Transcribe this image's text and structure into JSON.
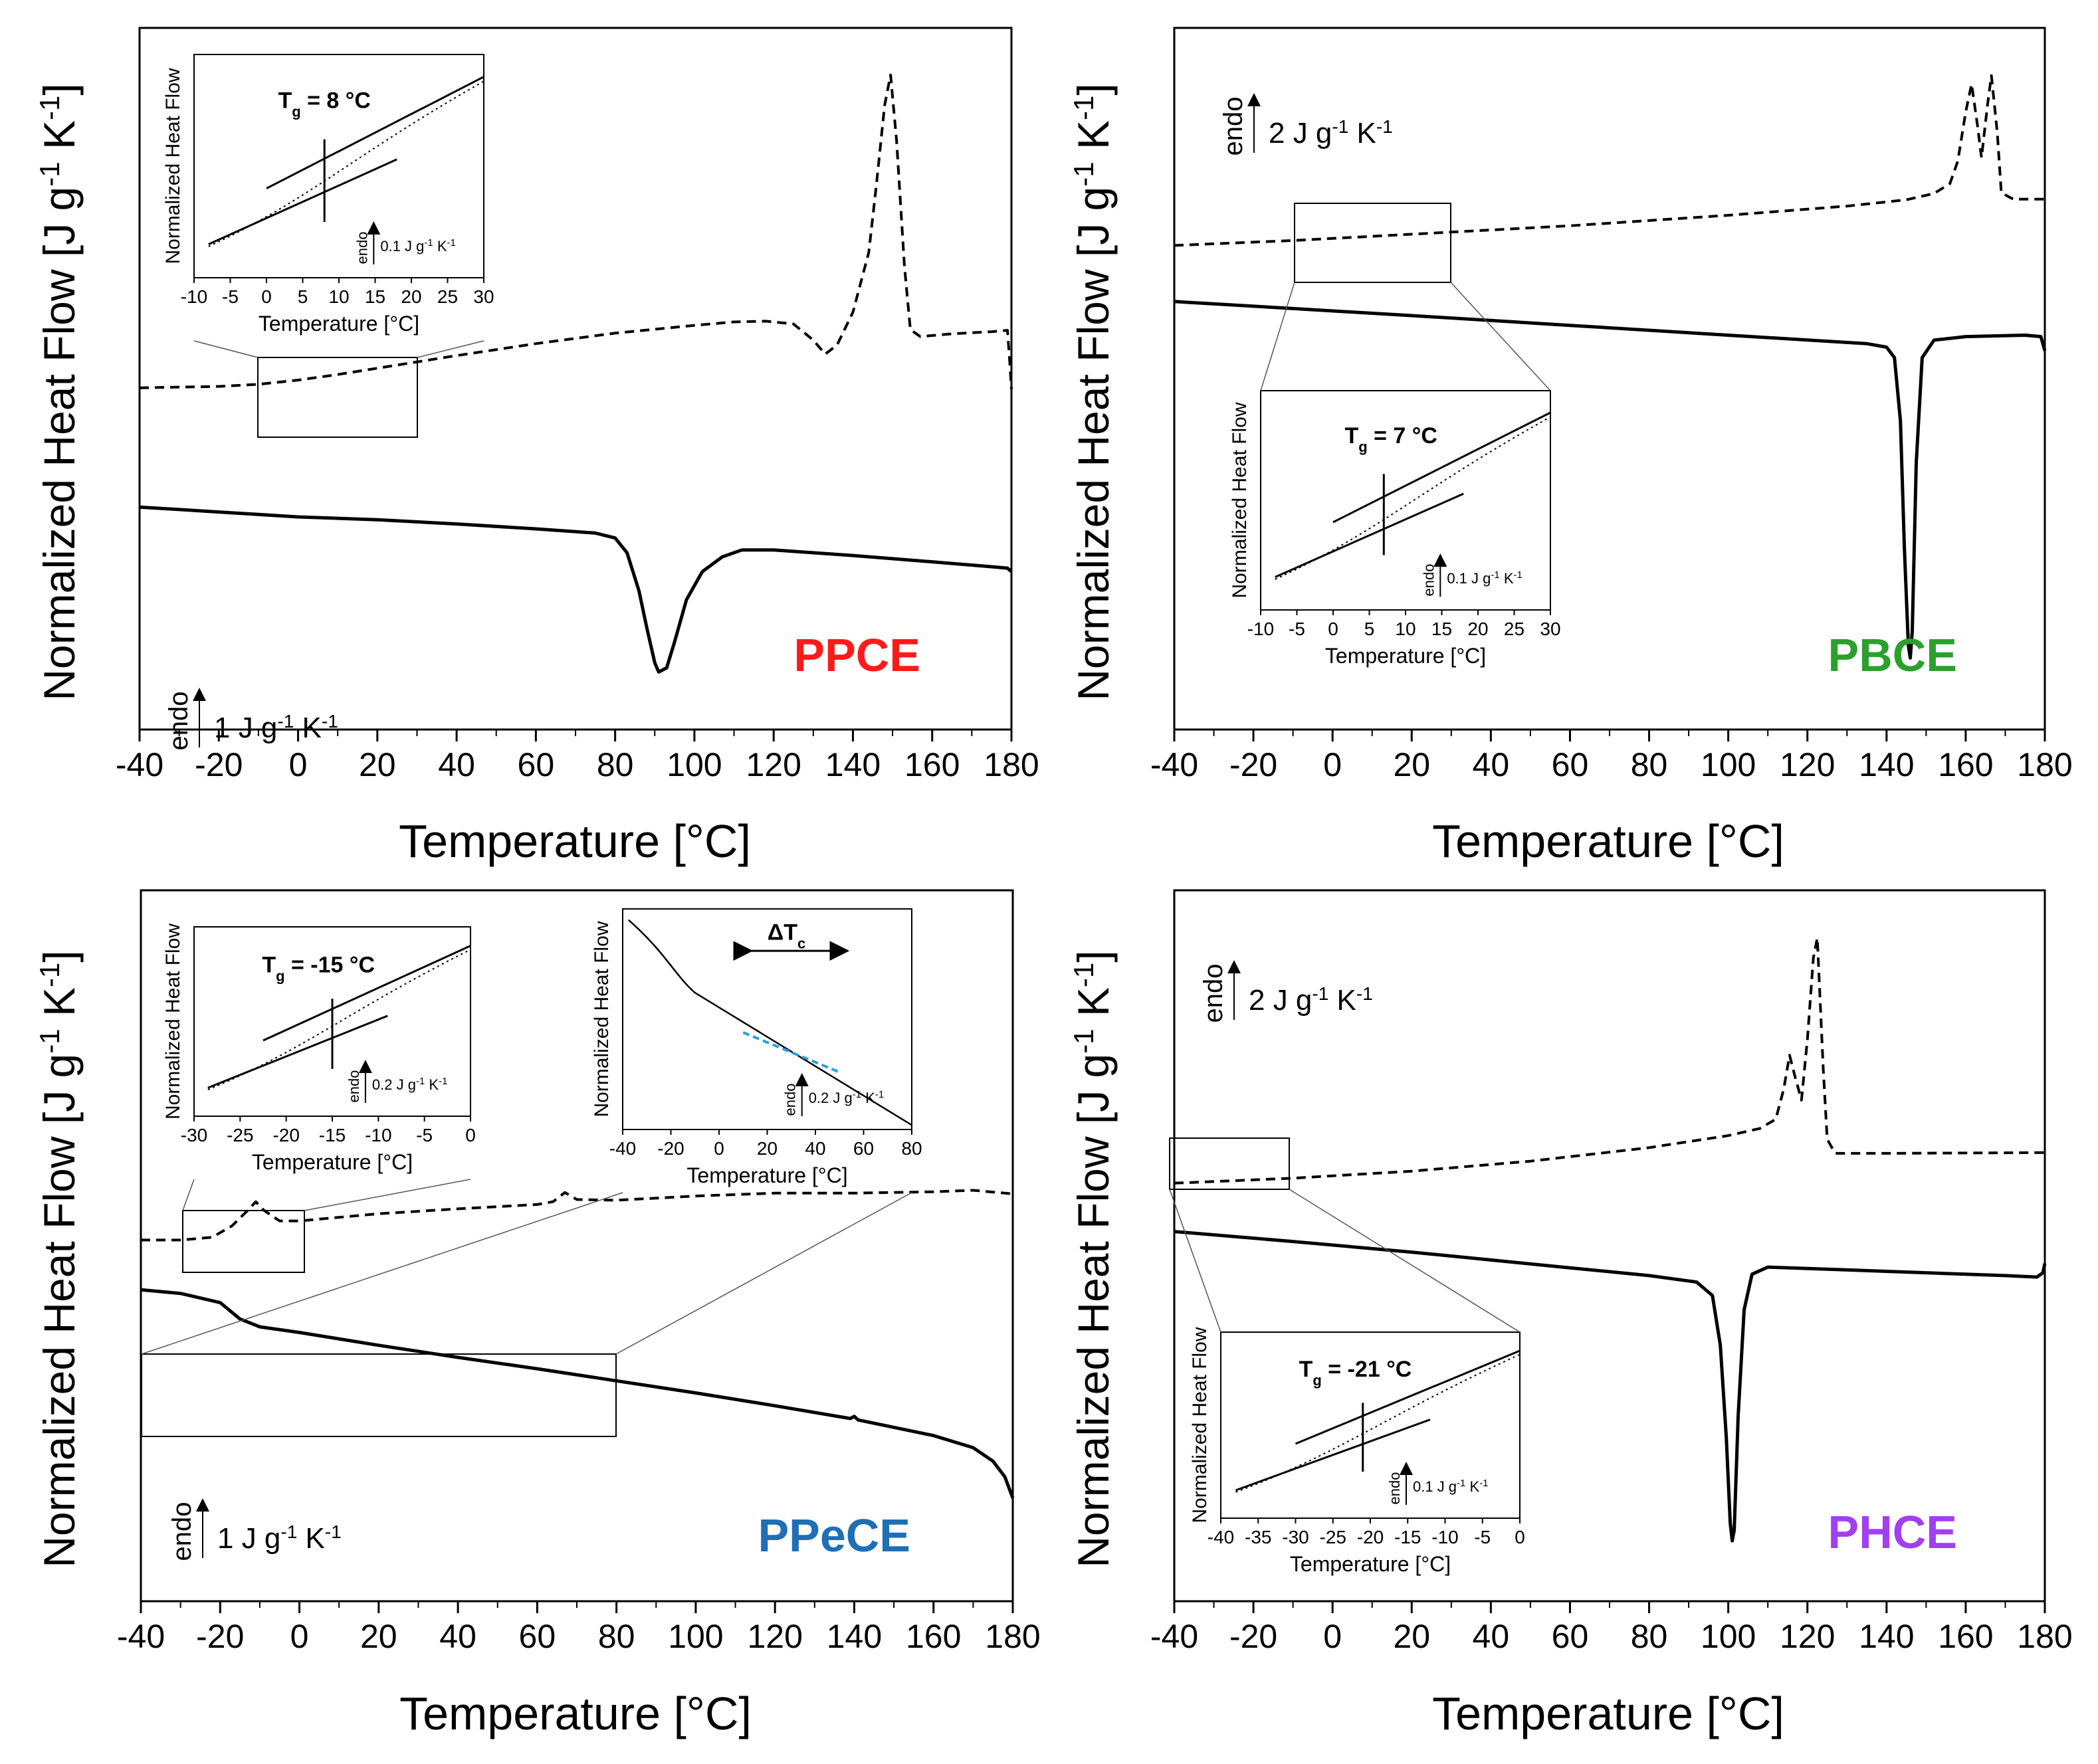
{
  "figure": {
    "common": {
      "xlabel": "Temperature [°C]",
      "ylabel_main": "Normalized Heat Flow [J g",
      "ylabel_sup": "-1",
      "ylabel_k": " K",
      "ylabel_end": "]",
      "inset_ylabel": "Normalized Heat Flow",
      "inset_xlabel": "Temperature [°C]",
      "endo": "endo"
    }
  },
  "chart_data": [
    {
      "id": "ppce",
      "type": "line",
      "title": "PPCE",
      "title_color": "#ff1a1a",
      "xlabel": "Temperature [°C]",
      "ylabel": "Normalized Heat Flow [J g-1 K-1]",
      "xlim": [
        -40,
        180
      ],
      "xticks": [
        -40,
        -20,
        0,
        20,
        40,
        60,
        80,
        100,
        120,
        140,
        160,
        180
      ],
      "ylim": [
        0,
        10
      ],
      "scale_bar": {
        "value": 1,
        "label": "1 J g-1 K-1",
        "main": "1 J g",
        "unit_tail": " K"
      },
      "series": [
        {
          "name": "heating",
          "style": "dashed",
          "points": [
            [
              -40,
              4.87
            ],
            [
              -20,
              4.89
            ],
            [
              -10,
              4.92
            ],
            [
              0,
              4.98
            ],
            [
              10,
              5.06
            ],
            [
              20,
              5.15
            ],
            [
              30,
              5.24
            ],
            [
              40,
              5.33
            ],
            [
              60,
              5.5
            ],
            [
              80,
              5.65
            ],
            [
              100,
              5.76
            ],
            [
              110,
              5.81
            ],
            [
              118,
              5.82
            ],
            [
              125,
              5.78
            ],
            [
              130,
              5.55
            ],
            [
              133,
              5.35
            ],
            [
              136,
              5.48
            ],
            [
              140,
              5.95
            ],
            [
              144,
              6.8
            ],
            [
              146,
              7.8
            ],
            [
              148,
              8.9
            ],
            [
              149.5,
              9.33
            ],
            [
              151,
              8.4
            ],
            [
              153,
              6.6
            ],
            [
              154.5,
              5.7
            ],
            [
              157,
              5.6
            ],
            [
              165,
              5.64
            ],
            [
              175,
              5.67
            ],
            [
              179,
              5.69
            ],
            [
              179.5,
              5.3
            ],
            [
              180,
              4.85
            ]
          ]
        },
        {
          "name": "cooling",
          "style": "solid",
          "points": [
            [
              -40,
              3.17
            ],
            [
              -20,
              3.1
            ],
            [
              0,
              3.03
            ],
            [
              20,
              2.99
            ],
            [
              40,
              2.93
            ],
            [
              60,
              2.86
            ],
            [
              75,
              2.8
            ],
            [
              80,
              2.73
            ],
            [
              83,
              2.52
            ],
            [
              86,
              1.98
            ],
            [
              88,
              1.45
            ],
            [
              90,
              0.95
            ],
            [
              91,
              0.82
            ],
            [
              93,
              0.88
            ],
            [
              95,
              1.25
            ],
            [
              98,
              1.85
            ],
            [
              102,
              2.25
            ],
            [
              107,
              2.46
            ],
            [
              112,
              2.56
            ],
            [
              120,
              2.56
            ],
            [
              140,
              2.48
            ],
            [
              160,
              2.39
            ],
            [
              175,
              2.32
            ],
            [
              179,
              2.3
            ],
            [
              180,
              2.25
            ]
          ]
        }
      ],
      "inset": {
        "xlim": [
          -10,
          30
        ],
        "xticks": [
          -10,
          -5,
          0,
          5,
          10,
          15,
          20,
          25,
          30
        ],
        "annotation": "Tg = 8 °C",
        "tg": 8,
        "scale_label": "0.1 J g-1 K-1",
        "scale_main": "0.1 J g",
        "scale_tail": " K",
        "zoom_box": {
          "x": [
            -10,
            30
          ]
        }
      }
    },
    {
      "id": "pbce",
      "type": "line",
      "title": "PBCE",
      "title_color": "#2ca02c",
      "xlabel": "Temperature [°C]",
      "ylabel": "Normalized Heat Flow [J g-1 K-1]",
      "xlim": [
        -40,
        180
      ],
      "xticks": [
        -40,
        -20,
        0,
        20,
        40,
        60,
        80,
        100,
        120,
        140,
        160,
        180
      ],
      "ylim": [
        0,
        10
      ],
      "scale_bar": {
        "value": 1,
        "label": "2 J g-1 K-1",
        "main": "2 J g",
        "unit_tail": " K"
      },
      "series": [
        {
          "name": "heating",
          "style": "dashed",
          "points": [
            [
              -40,
              6.9
            ],
            [
              -10,
              6.97
            ],
            [
              20,
              7.06
            ],
            [
              60,
              7.18
            ],
            [
              100,
              7.33
            ],
            [
              130,
              7.46
            ],
            [
              145,
              7.55
            ],
            [
              152,
              7.64
            ],
            [
              156,
              7.78
            ],
            [
              158,
              8.1
            ],
            [
              160,
              8.8
            ],
            [
              161.5,
              9.2
            ],
            [
              163,
              8.6
            ],
            [
              164,
              8.15
            ],
            [
              165.5,
              8.9
            ],
            [
              166.5,
              9.32
            ],
            [
              168,
              8.5
            ],
            [
              169,
              7.65
            ],
            [
              172,
              7.56
            ],
            [
              180,
              7.56
            ]
          ]
        },
        {
          "name": "cooling",
          "style": "solid",
          "points": [
            [
              -40,
              6.1
            ],
            [
              -10,
              6.0
            ],
            [
              20,
              5.9
            ],
            [
              60,
              5.76
            ],
            [
              100,
              5.62
            ],
            [
              135,
              5.5
            ],
            [
              140,
              5.45
            ],
            [
              142,
              5.3
            ],
            [
              143.5,
              4.4
            ],
            [
              144.5,
              2.6
            ],
            [
              145.5,
              1.2
            ],
            [
              146,
              1.02
            ],
            [
              146.5,
              1.4
            ],
            [
              147.5,
              3.8
            ],
            [
              149,
              5.3
            ],
            [
              152,
              5.55
            ],
            [
              160,
              5.6
            ],
            [
              175,
              5.62
            ],
            [
              179,
              5.6
            ],
            [
              180,
              5.4
            ]
          ]
        }
      ],
      "inset": {
        "xlim": [
          -10,
          30
        ],
        "xticks": [
          -10,
          -5,
          0,
          5,
          10,
          15,
          20,
          25,
          30
        ],
        "annotation": "Tg = 7 °C",
        "tg": 7,
        "scale_label": "0.1 J g-1 K-1",
        "scale_main": "0.1 J g",
        "scale_tail": " K",
        "zoom_box": {
          "x": [
            -10,
            30
          ]
        }
      }
    },
    {
      "id": "ppece",
      "type": "line",
      "title": "PPeCE",
      "title_color": "#1f6fb4",
      "xlabel": "Temperature [°C]",
      "ylabel": "Normalized Heat Flow [J g-1 K-1]",
      "xlim": [
        -40,
        180
      ],
      "xticks": [
        -40,
        -20,
        0,
        20,
        40,
        60,
        80,
        100,
        120,
        140,
        160,
        180
      ],
      "ylim": [
        0,
        10
      ],
      "scale_bar": {
        "value": 1,
        "label": "1 J g-1 K-1",
        "main": "1 J g",
        "unit_tail": " K"
      },
      "series": [
        {
          "name": "heating",
          "style": "dashed",
          "points": [
            [
              -40,
              5.08
            ],
            [
              -30,
              5.08
            ],
            [
              -22,
              5.12
            ],
            [
              -17,
              5.28
            ],
            [
              -13,
              5.5
            ],
            [
              -11,
              5.62
            ],
            [
              -9,
              5.5
            ],
            [
              -5,
              5.35
            ],
            [
              0,
              5.35
            ],
            [
              20,
              5.45
            ],
            [
              40,
              5.52
            ],
            [
              60,
              5.58
            ],
            [
              64,
              5.62
            ],
            [
              67,
              5.75
            ],
            [
              70,
              5.65
            ],
            [
              80,
              5.64
            ],
            [
              100,
              5.7
            ],
            [
              120,
              5.74
            ],
            [
              140,
              5.74
            ],
            [
              160,
              5.76
            ],
            [
              170,
              5.78
            ],
            [
              180,
              5.73
            ]
          ]
        },
        {
          "name": "cooling",
          "style": "solid",
          "points": [
            [
              -40,
              4.38
            ],
            [
              -30,
              4.33
            ],
            [
              -20,
              4.2
            ],
            [
              -15,
              3.97
            ],
            [
              -10,
              3.86
            ],
            [
              0,
              3.78
            ],
            [
              20,
              3.6
            ],
            [
              40,
              3.43
            ],
            [
              60,
              3.27
            ],
            [
              80,
              3.1
            ],
            [
              100,
              2.93
            ],
            [
              120,
              2.75
            ],
            [
              139,
              2.57
            ],
            [
              140,
              2.6
            ],
            [
              141,
              2.55
            ],
            [
              160,
              2.33
            ],
            [
              170,
              2.16
            ],
            [
              175,
              1.97
            ],
            [
              178,
              1.75
            ],
            [
              180,
              1.45
            ]
          ]
        }
      ],
      "inset": {
        "xlim": [
          -30,
          0
        ],
        "xticks": [
          -30,
          -25,
          -20,
          -15,
          -10,
          -5,
          0
        ],
        "annotation": "Tg = -15 °C",
        "tg": -15,
        "scale_label": "0.2 J g-1 K-1",
        "scale_main": "0.2 J g",
        "scale_tail": " K",
        "zoom_box": {
          "x": [
            -30,
            0
          ]
        }
      },
      "inset2": {
        "xlim": [
          -40,
          80
        ],
        "xticks": [
          -40,
          -20,
          0,
          20,
          40,
          60,
          80
        ],
        "annotation": "ΔTc",
        "annotation_main": "ΔT",
        "annotation_sub": "c",
        "scale_label": "0.2 J g-1 K-1",
        "scale_main": "0.2 J g",
        "scale_tail": " K",
        "highlight_color": "#2aa0d8",
        "zoom_box": {
          "x": [
            -40,
            80
          ]
        }
      }
    },
    {
      "id": "phce",
      "type": "line",
      "title": "PHCE",
      "title_color": "#a040f0",
      "xlabel": "Temperature [°C]",
      "ylabel": "Normalized Heat Flow [J g-1 K-1]",
      "xlim": [
        -40,
        180
      ],
      "xticks": [
        -40,
        -20,
        0,
        20,
        40,
        60,
        80,
        100,
        120,
        140,
        160,
        180
      ],
      "ylim": [
        0,
        10
      ],
      "scale_bar": {
        "value": 1,
        "label": "2 J g-1 K-1",
        "main": "2 J g",
        "unit_tail": " K"
      },
      "series": [
        {
          "name": "heating",
          "style": "dashed",
          "points": [
            [
              -40,
              5.88
            ],
            [
              -10,
              5.95
            ],
            [
              20,
              6.05
            ],
            [
              50,
              6.19
            ],
            [
              80,
              6.38
            ],
            [
              100,
              6.55
            ],
            [
              108,
              6.65
            ],
            [
              112,
              6.78
            ],
            [
              114,
              7.2
            ],
            [
              115.5,
              7.68
            ],
            [
              117,
              7.35
            ],
            [
              118.5,
              7.05
            ],
            [
              120,
              7.9
            ],
            [
              121.5,
              9.05
            ],
            [
              122.5,
              9.33
            ],
            [
              124,
              7.5
            ],
            [
              125,
              6.5
            ],
            [
              127,
              6.3
            ],
            [
              140,
              6.3
            ],
            [
              180,
              6.31
            ]
          ]
        },
        {
          "name": "cooling",
          "style": "solid",
          "points": [
            [
              -40,
              5.2
            ],
            [
              -10,
              5.06
            ],
            [
              20,
              4.91
            ],
            [
              40,
              4.8
            ],
            [
              60,
              4.69
            ],
            [
              80,
              4.58
            ],
            [
              92,
              4.49
            ],
            [
              96,
              4.3
            ],
            [
              98,
              3.6
            ],
            [
              99.5,
              2.3
            ],
            [
              100.5,
              1.1
            ],
            [
              101,
              0.85
            ],
            [
              101.5,
              1.0
            ],
            [
              102.5,
              2.6
            ],
            [
              104,
              4.1
            ],
            [
              106,
              4.6
            ],
            [
              110,
              4.7
            ],
            [
              140,
              4.64
            ],
            [
              170,
              4.58
            ],
            [
              178,
              4.56
            ],
            [
              179.5,
              4.62
            ],
            [
              180,
              4.75
            ]
          ]
        }
      ],
      "inset": {
        "xlim": [
          -40,
          0
        ],
        "xticks": [
          -40,
          -35,
          -30,
          -25,
          -20,
          -15,
          -10,
          -5,
          0
        ],
        "annotation": "Tg = -21 °C",
        "tg": -21,
        "scale_label": "0.1 J g-1 K-1",
        "scale_main": "0.1 J g",
        "scale_tail": " K",
        "zoom_box": {
          "x": [
            -40,
            -10
          ]
        }
      }
    }
  ]
}
